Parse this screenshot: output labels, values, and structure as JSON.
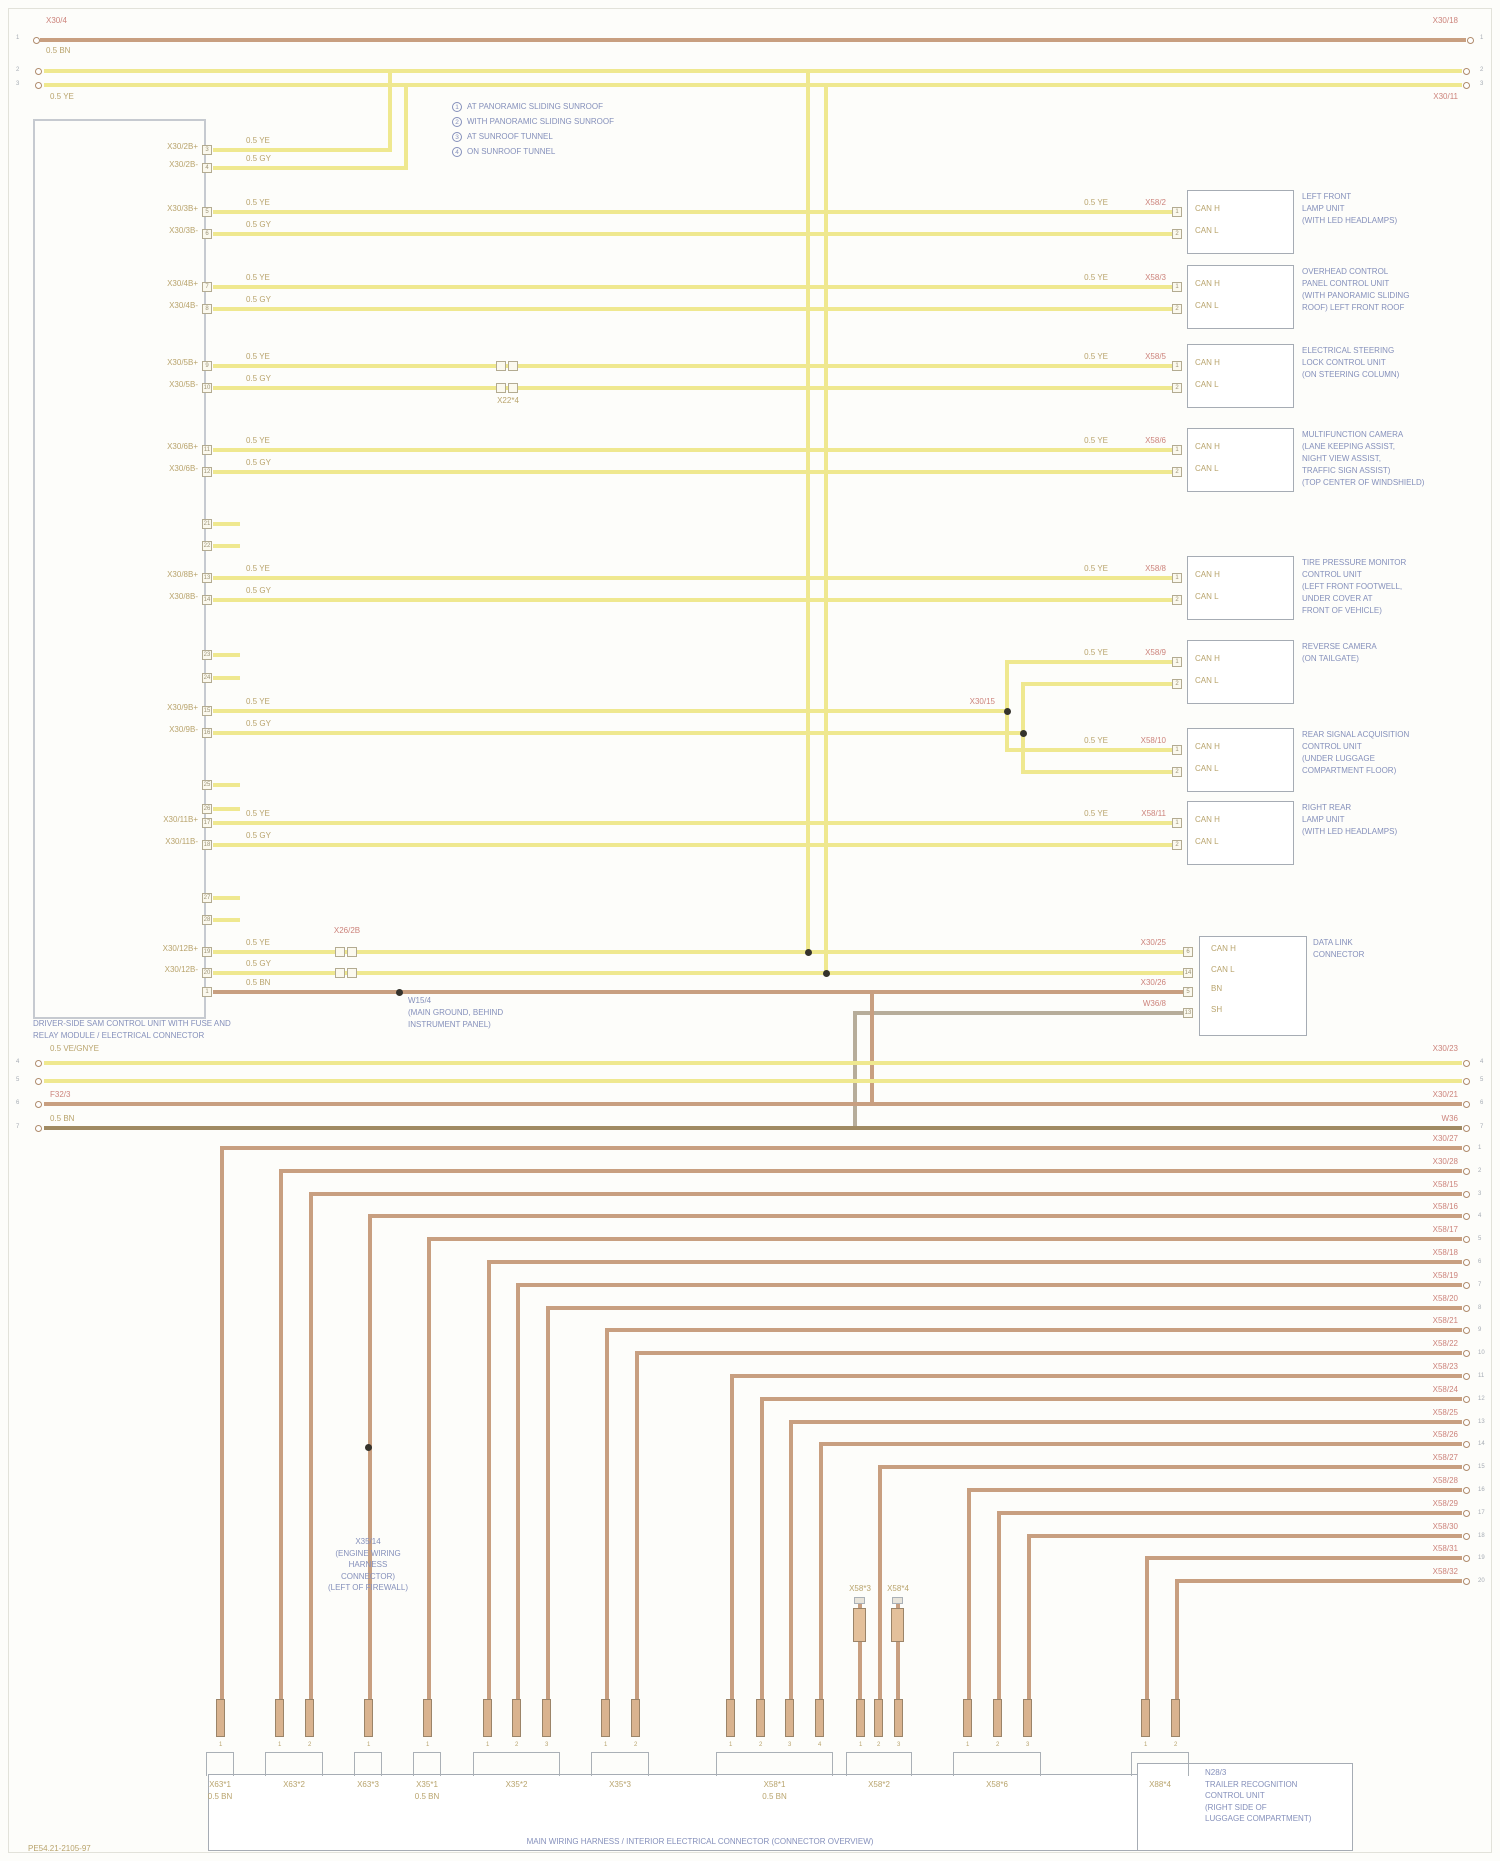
{
  "page": {
    "doc_code": "PE54.21-2105-97",
    "bottom_title": "MAIN WIRING HARNESS / INTERIOR ELECTRICAL CONNECTOR (CONNECTOR OVERVIEW)"
  },
  "colors": {
    "can_bus": "#efe88f",
    "power": "#c89f80",
    "ground": "#a08a62",
    "shield": "#b7ad9a",
    "text_blue": "#8590bb",
    "text_tan": "#b9a46d",
    "text_red": "#cc837b"
  },
  "legend": {
    "items": [
      {
        "num": "1",
        "text": "AT PANORAMIC SLIDING SUNROOF"
      },
      {
        "num": "2",
        "text": "WITH PANORAMIC SLIDING SUNROOF"
      },
      {
        "num": "3",
        "text": "AT SUNROOF TUNNEL"
      },
      {
        "num": "4",
        "text": "ON SUNROOF TUNNEL"
      }
    ]
  },
  "left_block": {
    "caption_lines": [
      "DRIVER-SIDE SAM CONTROL UNIT WITH FUSE AND",
      "RELAY MODULE / ELECTRICAL CONNECTOR"
    ]
  },
  "buses": {
    "top_brown": {
      "left_code": "X30/4",
      "left_label": "0.5 BN",
      "right_code": "X30/18"
    },
    "top_yellow": {
      "left_label": "0.5 YE",
      "right_code": "X30/11"
    },
    "mid_yellow": {
      "left_label": "0.5 VE/GNYE",
      "right_code": "X30/23"
    },
    "mid_brown": {
      "left_code": "F32/3",
      "right_code": "X30/21"
    },
    "mid_dark": {
      "left_label": "0.5 BN",
      "right_code": "W36"
    }
  },
  "rows": [
    {
      "block_pins": [
        "X30/2B+",
        "X30/2B-"
      ],
      "pin_nums": [
        "3",
        "4"
      ],
      "code_top": "0.5 YE",
      "code_bot": "0.5 GY"
    },
    {
      "block_pins": [
        "X30/3B+",
        "X30/3B-"
      ],
      "pin_nums": [
        "5",
        "6"
      ],
      "code_top": "0.5 YE",
      "code_bot": "0.5 GY",
      "end_wire_code": "0.5 YE",
      "end_code": "X58/2",
      "box_pins": [
        "1",
        "2"
      ],
      "box_pin_labels": [
        "CAN H",
        "CAN L"
      ],
      "desc": [
        "LEFT FRONT",
        "LAMP UNIT",
        "(WITH LED HEADLAMPS)"
      ]
    },
    {
      "block_pins": [
        "X30/4B+",
        "X30/4B-"
      ],
      "pin_nums": [
        "7",
        "8"
      ],
      "code_top": "0.5 YE",
      "code_bot": "0.5 GY",
      "end_wire_code": "0.5 YE",
      "end_code": "X58/3",
      "box_pins": [
        "1",
        "2"
      ],
      "box_pin_labels": [
        "CAN H",
        "CAN L"
      ],
      "desc": [
        "OVERHEAD CONTROL",
        "PANEL CONTROL UNIT",
        "(WITH PANORAMIC SLIDING",
        "ROOF) LEFT FRONT ROOF"
      ]
    },
    {
      "block_pins": [
        "X30/5B+",
        "X30/5B-"
      ],
      "pin_nums": [
        "9",
        "10"
      ],
      "code_top": "0.5 YE",
      "code_bot": "0.5 GY",
      "mid_conn_code": "X22*4",
      "end_wire_code": "0.5 YE",
      "end_code": "X58/5",
      "box_pins": [
        "1",
        "2"
      ],
      "box_pin_labels": [
        "CAN H",
        "CAN L"
      ],
      "desc": [
        "ELECTRICAL STEERING",
        "LOCK CONTROL UNIT",
        "(ON STEERING COLUMN)"
      ]
    },
    {
      "block_pins": [
        "X30/6B+",
        "X30/6B-"
      ],
      "pin_nums": [
        "11",
        "12"
      ],
      "code_top": "0.5 YE",
      "code_bot": "0.5 GY",
      "end_wire_code": "0.5 YE",
      "end_code": "X58/6",
      "box_pins": [
        "1",
        "2"
      ],
      "box_pin_labels": [
        "CAN H",
        "CAN L"
      ],
      "desc": [
        "MULTIFUNCTION CAMERA",
        "(LANE KEEPING ASSIST,",
        "NIGHT VIEW ASSIST,",
        "TRAFFIC SIGN ASSIST)",
        "(TOP CENTER OF WINDSHIELD)"
      ]
    },
    {
      "block_pins": [
        "X30/8B+",
        "X30/8B-"
      ],
      "pin_nums": [
        "13",
        "14"
      ],
      "code_top": "0.5 YE",
      "code_bot": "0.5 GY",
      "end_wire_code": "0.5 YE",
      "end_code": "X58/8",
      "box_pins": [
        "1",
        "2"
      ],
      "box_pin_labels": [
        "CAN H",
        "CAN L"
      ],
      "desc": [
        "TIRE PRESSURE MONITOR",
        "CONTROL UNIT",
        "(LEFT FRONT FOOTWELL,",
        "UNDER COVER AT",
        "FRONT OF VEHICLE)"
      ]
    },
    {
      "block_pins": [
        "X30/9B+",
        "X30/9B-"
      ],
      "pin_nums": [
        "15",
        "16"
      ],
      "code_top": "0.5 YE",
      "code_bot": "0.5 GY",
      "end_code": "X30/15"
    },
    {
      "block_pins": [
        "X30/11B+",
        "X30/11B-"
      ],
      "pin_nums": [
        "17",
        "18"
      ],
      "code_top": "0.5 YE",
      "code_bot": "0.5 GY",
      "end_wire_code": "0.5 YE",
      "end_code": "X58/11",
      "box_pins": [
        "1",
        "2"
      ],
      "box_pin_labels": [
        "CAN H",
        "CAN L"
      ],
      "desc": [
        "RIGHT REAR",
        "LAMP UNIT",
        "(WITH LED HEADLAMPS)"
      ]
    },
    {
      "block_pins": [
        "X30/12B+",
        "X30/12B-"
      ],
      "pin_nums": [
        "19",
        "20"
      ],
      "code_top": "0.5 YE",
      "code_bot": "0.5 GY",
      "inline_code": "X26/2B",
      "end_code": "X30/25"
    }
  ],
  "branch": {
    "up": {
      "end_wire_code": "0.5 YE",
      "end_code": "X58/9",
      "box_pins": [
        "1",
        "2"
      ],
      "box_pin_labels": [
        "CAN H",
        "CAN L"
      ],
      "desc": [
        "REVERSE CAMERA",
        "(ON TAILGATE)"
      ]
    },
    "down": {
      "end_wire_code": "0.5 YE",
      "end_code": "X58/10",
      "box_pins": [
        "1",
        "2"
      ],
      "box_pin_labels": [
        "CAN H",
        "CAN L"
      ],
      "desc": [
        "REAR SIGNAL ACQUISITION",
        "CONTROL UNIT",
        "(UNDER LUGGAGE",
        "COMPARTMENT FLOOR)"
      ]
    }
  },
  "dlc": {
    "pins": [
      "6",
      "14",
      "5",
      "13"
    ],
    "pin_labels": [
      "CAN H",
      "CAN L",
      "BN",
      "SH"
    ],
    "desc": [
      "DATA LINK",
      "CONNECTOR"
    ],
    "bn_code": "0.5 BN",
    "bn_end": "X30/26",
    "sh_end": "W36/8",
    "ground": [
      "W15/4",
      "(MAIN GROUND, BEHIND",
      "INSTRUMENT PANEL)"
    ]
  },
  "stubs": {
    "pin_nums": [
      [
        "21",
        "22"
      ],
      [
        "23",
        "24"
      ],
      [
        "25",
        "26"
      ],
      [
        "27",
        "28"
      ]
    ]
  },
  "cascade": {
    "codes": [
      "X30/27",
      "X30/28",
      "X58/15",
      "X58/16",
      "X58/17",
      "X58/18",
      "X58/19",
      "X58/20",
      "X58/21",
      "X58/22",
      "X58/23",
      "X58/24",
      "X58/25",
      "X58/26",
      "X58/27",
      "X58/28",
      "X58/29",
      "X58/30",
      "X58/31",
      "X58/32"
    ],
    "clusters": [
      {
        "label": "X63*1",
        "sub": "0.5 BN"
      },
      {
        "label": "X63*2",
        "sub": ""
      },
      {
        "label": "X63*3",
        "sub": ""
      },
      {
        "label": "X35*1",
        "sub": "0.5 BN"
      },
      {
        "label": "X35*2",
        "sub": ""
      },
      {
        "label": "X35*3",
        "sub": ""
      },
      {
        "label": "X58*1",
        "sub": "0.5 BN"
      },
      {
        "label": "X58*2",
        "sub": ""
      },
      {
        "label": "X58*6",
        "sub": ""
      },
      {
        "label": "X88*4",
        "sub": ""
      }
    ],
    "sleeve_labels": [
      "X58*3",
      "X58*4"
    ]
  },
  "splice": {
    "lines": [
      "X35/14",
      "(ENGINE WIRING",
      "HARNESS",
      "CONNECTOR)",
      "(LEFT OF FIREWALL)"
    ]
  },
  "trailer": {
    "lines": [
      "N28/3",
      "TRAILER RECOGNITION",
      "CONTROL UNIT",
      "(RIGHT SIDE OF",
      "LUGGAGE COMPARTMENT)"
    ]
  }
}
